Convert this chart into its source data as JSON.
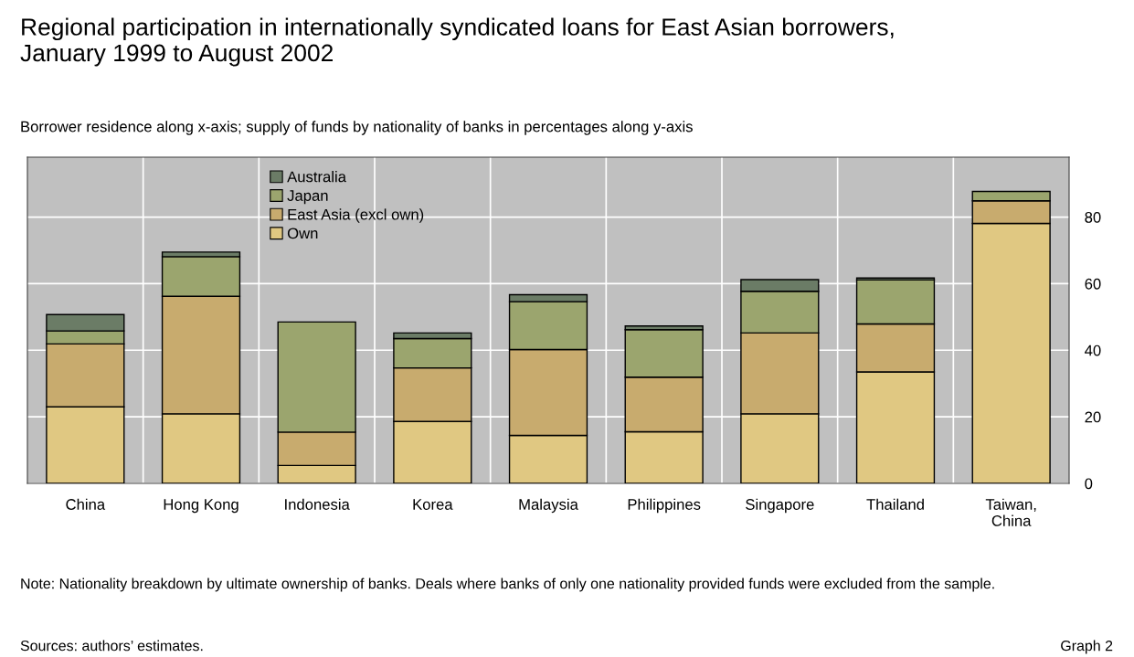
{
  "chart_data": {
    "type": "bar",
    "title": "Regional participation in internationally syndicated loans for East Asian borrowers,\nJanuary 1999 to August 2002",
    "subtitle": "Borrower residence along x-axis; supply of funds by nationality of banks in percentages along y-axis",
    "categories": [
      "China",
      "Hong Kong",
      "Indonesia",
      "Korea",
      "Malaysia",
      "Philippines",
      "Singapore",
      "Thailand",
      "Taiwan,\nChina"
    ],
    "stacked": true,
    "series": [
      {
        "name": "Own",
        "color": "#e0c882",
        "values": [
          23.0,
          20.9,
          5.4,
          18.6,
          14.4,
          15.5,
          20.9,
          33.5,
          78.1
        ]
      },
      {
        "name": "East Asia (excl own)",
        "color": "#c8ab6e",
        "values": [
          18.9,
          35.3,
          10.0,
          16.1,
          25.8,
          16.4,
          24.3,
          14.4,
          6.8
        ]
      },
      {
        "name": "Japan",
        "color": "#9ba56e",
        "values": [
          3.9,
          11.9,
          33.1,
          8.8,
          14.4,
          14.3,
          12.5,
          13.2,
          2.8
        ]
      },
      {
        "name": "Australia",
        "color": "#6b7c66",
        "values": [
          4.9,
          1.4,
          null,
          1.7,
          2.1,
          1.1,
          3.5,
          0.6,
          null
        ]
      }
    ],
    "ylim": [
      0,
      98
    ],
    "yticks": [
      0,
      20,
      40,
      60,
      80
    ],
    "grid": true,
    "legend": "top left",
    "annotations": [
      "Note: Nationality breakdown by ultimate ownership of banks. Deals where banks of only one nationality provided funds were excluded from the sample.",
      "Sources: authors’ estimates.",
      "Graph 2"
    ]
  }
}
